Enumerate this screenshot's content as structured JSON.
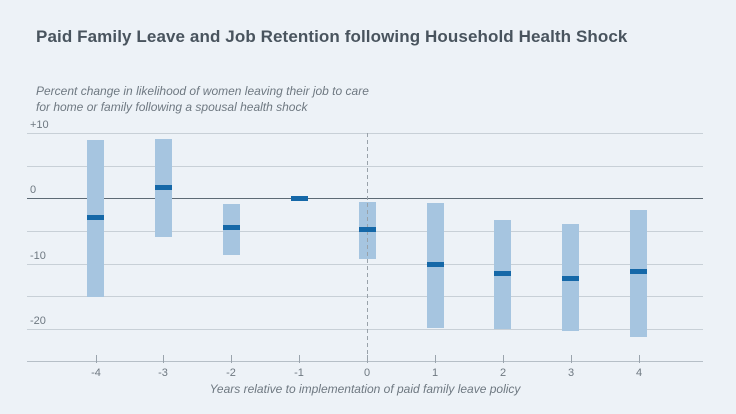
{
  "header": {
    "title": "Paid Family Leave and Job Retention following Household Health Shock"
  },
  "chart_data": {
    "type": "bar",
    "variant": "range-bars-with-point-estimates",
    "title": "Paid Family Leave and Job Retention following Household Health Shock",
    "subtitle_lines": [
      "Percent change in likelihood of women leaving their job to care",
      "for home or family following a spousal health shock"
    ],
    "xlabel": "Years relative to implementation of paid family leave policy",
    "ylabel": "",
    "categories": [
      -4,
      -3,
      -2,
      -1,
      0,
      1,
      2,
      3,
      4
    ],
    "x_tick_labels": [
      "-4",
      "-3",
      "-2",
      "-1",
      "0",
      "1",
      "2",
      "3",
      "4"
    ],
    "series": [
      {
        "name": "point estimate",
        "values": [
          -3.0,
          1.6,
          -4.5,
          -0.1,
          -4.8,
          -10.2,
          -11.5,
          -12.3,
          -11.2
        ]
      },
      {
        "name": "confidence interval high",
        "values": [
          8.9,
          9.1,
          -0.9,
          null,
          -0.6,
          -0.7,
          -3.3,
          -4.0,
          -1.8
        ]
      },
      {
        "name": "confidence interval low",
        "values": [
          -15.1,
          -5.9,
          -8.7,
          null,
          -9.3,
          -19.9,
          -20.0,
          -20.4,
          -21.2
        ]
      }
    ],
    "ylim": [
      -25,
      10
    ],
    "ytick_values": [
      10,
      5,
      0,
      -5,
      -10,
      -15,
      -20
    ],
    "ytick_labeled_values": [
      10,
      0,
      -10,
      -20
    ],
    "ytick_label_text": {
      "10": "+10",
      "0": "0",
      "-10": "-10",
      "-20": "-20"
    },
    "reference_line_x": 0,
    "grid": true,
    "legend": "none",
    "colors": {
      "band": "#a6c5e0",
      "marker": "#1568a8",
      "zero_line": "#5d6a75",
      "gridline": "#c8d0d7",
      "axis_line": "#b6bfc7",
      "dashed_line": "#99a2aa",
      "background": "#edf2f7",
      "title_text": "#49545e",
      "muted_text": "#6e7881"
    }
  }
}
